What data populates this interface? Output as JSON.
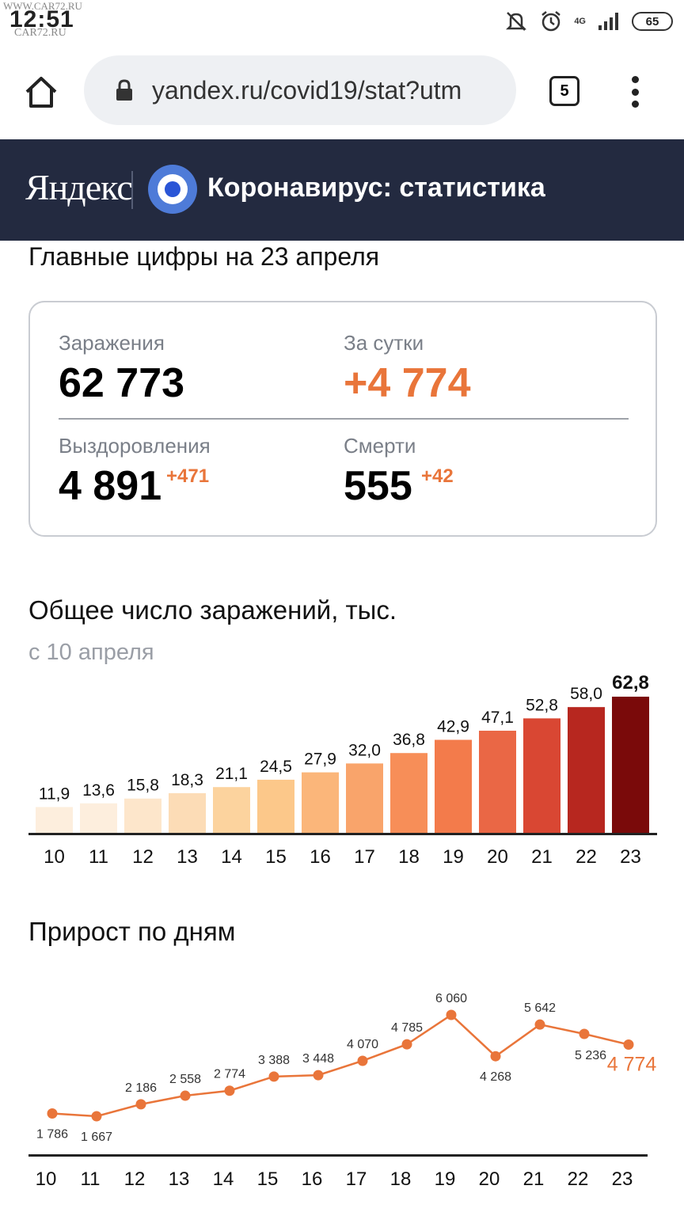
{
  "status_bar": {
    "time": "12:51",
    "watermark_top": "WWW.CAR72.RU",
    "watermark_bottom": "CAR72.RU",
    "network": "4G",
    "battery": "65",
    "icons": [
      "mute-icon",
      "alarm-icon",
      "signal-icon"
    ]
  },
  "browser": {
    "url": "yandex.ru/covid19/stat?utm",
    "tab_count": "5"
  },
  "header": {
    "logo": "Яндекс",
    "title": "Коронавирус: статистика"
  },
  "main_figures": {
    "title": "Главные цифры на 23 апреля",
    "infections_label": "Заражения",
    "infections_value": "62 773",
    "daily_label": "За сутки",
    "daily_value": "+4 774",
    "recoveries_label": "Выздоровления",
    "recoveries_value": "4 891",
    "recoveries_delta": "+471",
    "deaths_label": "Смерти",
    "deaths_value": "555",
    "deaths_delta": "+42"
  },
  "total_chart": {
    "title": "Общее число заражений, тыс.",
    "subtitle": "с 10 апреля"
  },
  "daily_chart": {
    "title": "Прирост по дням"
  },
  "chart_data": [
    {
      "type": "bar",
      "title": "Общее число заражений, тыс.",
      "subtitle": "с 10 апреля",
      "categories": [
        "10",
        "11",
        "12",
        "13",
        "14",
        "15",
        "16",
        "17",
        "18",
        "19",
        "20",
        "21",
        "22",
        "23"
      ],
      "values": [
        11.9,
        13.6,
        15.8,
        18.3,
        21.1,
        24.5,
        27.9,
        32.0,
        36.8,
        42.9,
        47.1,
        52.8,
        58.0,
        62.8
      ],
      "labels": [
        "11,9",
        "13,6",
        "15,8",
        "18,3",
        "21,1",
        "24,5",
        "27,9",
        "32,0",
        "36,8",
        "42,9",
        "47,1",
        "52,8",
        "58,0",
        "62,8"
      ],
      "colors": [
        "#fdeedd",
        "#fdeedd",
        "#fde6cb",
        "#fcdcb6",
        "#fcd39e",
        "#fcc88a",
        "#fbb67a",
        "#f9a46b",
        "#f78e58",
        "#f37b4b",
        "#ea6745",
        "#d94733",
        "#b7271f",
        "#7a0a0a"
      ],
      "ylim": [
        0,
        65
      ],
      "grid": false
    },
    {
      "type": "line",
      "title": "Прирост по дням",
      "categories": [
        "10",
        "11",
        "12",
        "13",
        "14",
        "15",
        "16",
        "17",
        "18",
        "19",
        "20",
        "21",
        "22",
        "23"
      ],
      "values": [
        1786,
        1667,
        2186,
        2558,
        2774,
        3388,
        3448,
        4070,
        4785,
        6060,
        4268,
        5642,
        5236,
        4774
      ],
      "labels": [
        "1 786",
        "1 667",
        "2 186",
        "2 558",
        "2 774",
        "3 388",
        "3 448",
        "4 070",
        "4 785",
        "6 060",
        "4 268",
        "5 642",
        "5 236",
        "4 774"
      ],
      "color": "#e9753a",
      "ylim": [
        0,
        6500
      ],
      "grid": false
    }
  ]
}
